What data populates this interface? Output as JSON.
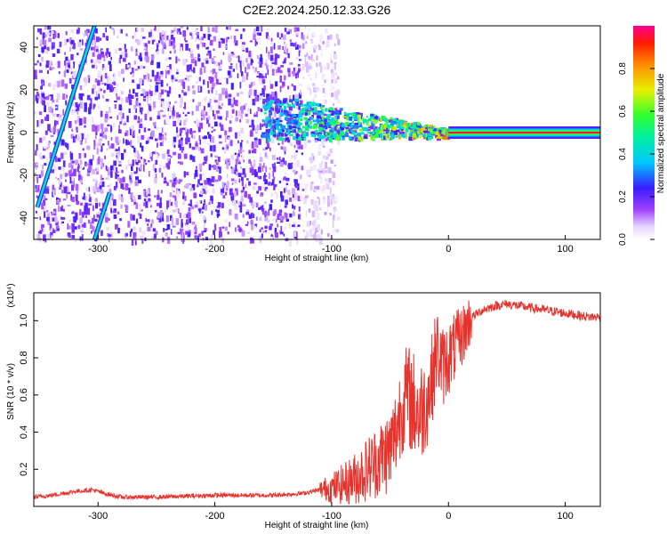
{
  "title": "C2E2.2024.250.12.33.G26",
  "chart_data": [
    {
      "type": "heatmap",
      "xlabel": "Height of straight line (km)",
      "ylabel": "Frequency (Hz)",
      "xlim": [
        -355,
        130
      ],
      "ylim": [
        -50,
        50
      ],
      "xticks": [
        -300,
        -200,
        -100,
        0,
        100
      ],
      "yticks": [
        -40,
        -20,
        0,
        20,
        40
      ],
      "xtick_labels": [
        "-300",
        "-200",
        "-100",
        "0",
        "100"
      ],
      "ytick_labels": [
        "-40",
        "-20",
        "0",
        "20",
        "40"
      ],
      "colorbar": {
        "label": "Normalized spectral amplitude",
        "range": [
          0,
          1
        ],
        "ticks": [
          0.0,
          0.2,
          0.4,
          0.6,
          0.8
        ],
        "tick_labels": [
          "0.0",
          "0.2",
          "0.4",
          "0.6",
          "0.8"
        ]
      },
      "features": [
        {
          "name": "steady-carrier",
          "x_range": [
            0,
            130
          ],
          "frequency": 0,
          "amplitude": 0.95
        },
        {
          "name": "transition-band",
          "x_range": [
            -160,
            0
          ],
          "frequency_start": 8,
          "frequency_end": 0,
          "amplitude": 0.5
        },
        {
          "name": "diagonal-line-a",
          "start": [
            -352,
            -35
          ],
          "end": [
            -303,
            50
          ],
          "amplitude": 0.35
        },
        {
          "name": "diagonal-line-b",
          "start": [
            -303,
            -50
          ],
          "end": [
            -290,
            -28
          ],
          "amplitude": 0.35
        },
        {
          "name": "noise-region",
          "x_range": [
            -355,
            -125
          ],
          "amplitude": 0.15
        }
      ]
    },
    {
      "type": "line",
      "xlabel": "Height of straight line (km)",
      "ylabel": "SNR (10 * v/v)",
      "y_multiplier": "(x10⁴)",
      "xlim": [
        -355,
        130
      ],
      "ylim": [
        0,
        1.15
      ],
      "xticks": [
        -300,
        -200,
        -100,
        0,
        100
      ],
      "yticks": [
        0.2,
        0.4,
        0.6,
        0.8,
        1.0
      ],
      "xtick_labels": [
        "-300",
        "-200",
        "-100",
        "0",
        "100"
      ],
      "ytick_labels": [
        "0.2",
        "0.4",
        "0.6",
        "0.8",
        "1.0"
      ],
      "color": "#e8322c",
      "series": [
        {
          "x": [
            -355,
            -340,
            -320,
            -305,
            -295,
            -280,
            -250,
            -200,
            -150,
            -125,
            -110,
            -100,
            -90,
            -80,
            -70,
            -60,
            -50,
            -45,
            -40,
            -35,
            -30,
            -25,
            -20,
            -15,
            -10,
            -5,
            0,
            5,
            10,
            20,
            30,
            40,
            50,
            60,
            70,
            80,
            90,
            100,
            110,
            120,
            130
          ],
          "y": [
            0.05,
            0.06,
            0.08,
            0.09,
            0.07,
            0.05,
            0.05,
            0.06,
            0.06,
            0.07,
            0.09,
            0.1,
            0.12,
            0.15,
            0.2,
            0.25,
            0.3,
            0.4,
            0.55,
            0.6,
            0.55,
            0.5,
            0.55,
            0.65,
            0.85,
            0.75,
            0.8,
            0.85,
            0.9,
            1.02,
            1.06,
            1.08,
            1.09,
            1.08,
            1.07,
            1.06,
            1.05,
            1.04,
            1.03,
            1.02,
            1.02
          ]
        }
      ]
    }
  ]
}
